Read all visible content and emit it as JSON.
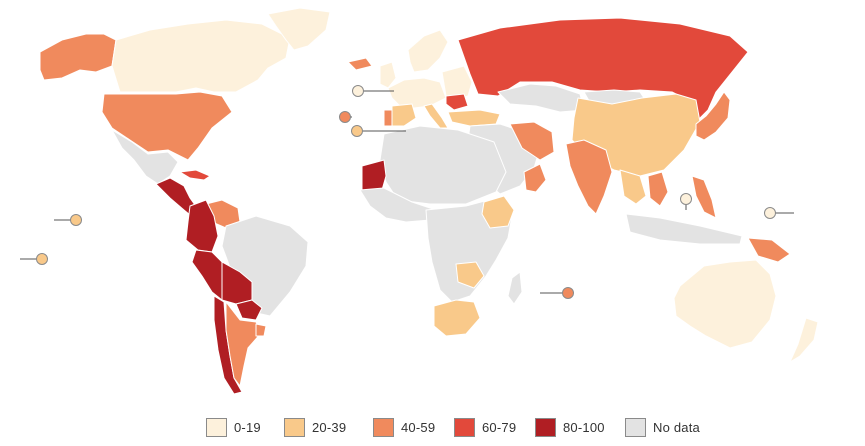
{
  "colors": {
    "background": "#ffffff",
    "ocean": "#ffffff",
    "border": "#ffffff",
    "no_data": "#e3e3e3",
    "range_0_19": "#fdf1dc",
    "range_20_39": "#f9c98a",
    "range_40_59": "#f08a5d",
    "range_60_79": "#e2493b",
    "range_80_100": "#b01e23"
  },
  "legend": [
    {
      "label": "0-19",
      "color": "#fdf1dc"
    },
    {
      "label": "20-39",
      "color": "#f9c98a"
    },
    {
      "label": "40-59",
      "color": "#f08a5d"
    },
    {
      "label": "60-79",
      "color": "#e2493b"
    },
    {
      "label": "80-100",
      "color": "#b01e23"
    },
    {
      "label": "No data",
      "color": "#e3e3e3"
    }
  ],
  "regions": [
    {
      "name": "alaska",
      "range": "40-59"
    },
    {
      "name": "canada",
      "range": "0-19"
    },
    {
      "name": "greenland",
      "range": "0-19"
    },
    {
      "name": "united-states",
      "range": "40-59"
    },
    {
      "name": "mexico",
      "range": "no-data"
    },
    {
      "name": "cuba",
      "range": "60-79"
    },
    {
      "name": "central-america",
      "range": "80-100"
    },
    {
      "name": "venezuela",
      "range": "40-59"
    },
    {
      "name": "colombia-ecuador",
      "range": "80-100"
    },
    {
      "name": "peru",
      "range": "80-100"
    },
    {
      "name": "brazil",
      "range": "no-data"
    },
    {
      "name": "bolivia",
      "range": "80-100"
    },
    {
      "name": "paraguay",
      "range": "80-100"
    },
    {
      "name": "chile",
      "range": "80-100"
    },
    {
      "name": "argentina",
      "range": "40-59"
    },
    {
      "name": "uruguay",
      "range": "40-59"
    },
    {
      "name": "iceland",
      "range": "40-59"
    },
    {
      "name": "uk-ireland",
      "range": "0-19"
    },
    {
      "name": "scandinavia",
      "range": "0-19"
    },
    {
      "name": "western-europe",
      "range": "0-19"
    },
    {
      "name": "portugal",
      "range": "40-59"
    },
    {
      "name": "spain",
      "range": "20-39"
    },
    {
      "name": "italy",
      "range": "20-39"
    },
    {
      "name": "eastern-europe",
      "range": "0-19"
    },
    {
      "name": "romania",
      "range": "60-79"
    },
    {
      "name": "turkey",
      "range": "20-39"
    },
    {
      "name": "russia",
      "range": "60-79"
    },
    {
      "name": "kazakhstan",
      "range": "no-data"
    },
    {
      "name": "mongolia",
      "range": "no-data"
    },
    {
      "name": "china",
      "range": "20-39"
    },
    {
      "name": "korea-japan",
      "range": "40-59"
    },
    {
      "name": "middle-east",
      "range": "no-data"
    },
    {
      "name": "iran",
      "range": "40-59"
    },
    {
      "name": "arabia-east",
      "range": "40-59"
    },
    {
      "name": "india",
      "range": "40-59"
    },
    {
      "name": "southeast-asia",
      "range": "20-39"
    },
    {
      "name": "vietnam-cambodia",
      "range": "40-59"
    },
    {
      "name": "philippines",
      "range": "40-59"
    },
    {
      "name": "indonesia",
      "range": "no-data"
    },
    {
      "name": "papua-new-guinea",
      "range": "40-59"
    },
    {
      "name": "australia",
      "range": "0-19"
    },
    {
      "name": "new-zealand",
      "range": "0-19"
    },
    {
      "name": "north-africa",
      "range": "no-data"
    },
    {
      "name": "mauritania",
      "range": "80-100"
    },
    {
      "name": "west-africa",
      "range": "no-data"
    },
    {
      "name": "central-africa",
      "range": "no-data"
    },
    {
      "name": "ethiopia",
      "range": "20-39"
    },
    {
      "name": "zambia-zimbabwe",
      "range": "20-39"
    },
    {
      "name": "south-africa",
      "range": "20-39"
    },
    {
      "name": "madagascar",
      "range": "no-data"
    }
  ],
  "markers": [
    {
      "name": "marker-1",
      "range": "0-19"
    },
    {
      "name": "marker-2",
      "range": "40-59"
    },
    {
      "name": "marker-3",
      "range": "20-39"
    },
    {
      "name": "marker-4",
      "range": "20-39"
    },
    {
      "name": "marker-5",
      "range": "20-39"
    },
    {
      "name": "marker-6",
      "range": "40-59"
    },
    {
      "name": "marker-7",
      "range": "0-19"
    },
    {
      "name": "marker-8",
      "range": "0-19"
    }
  ]
}
